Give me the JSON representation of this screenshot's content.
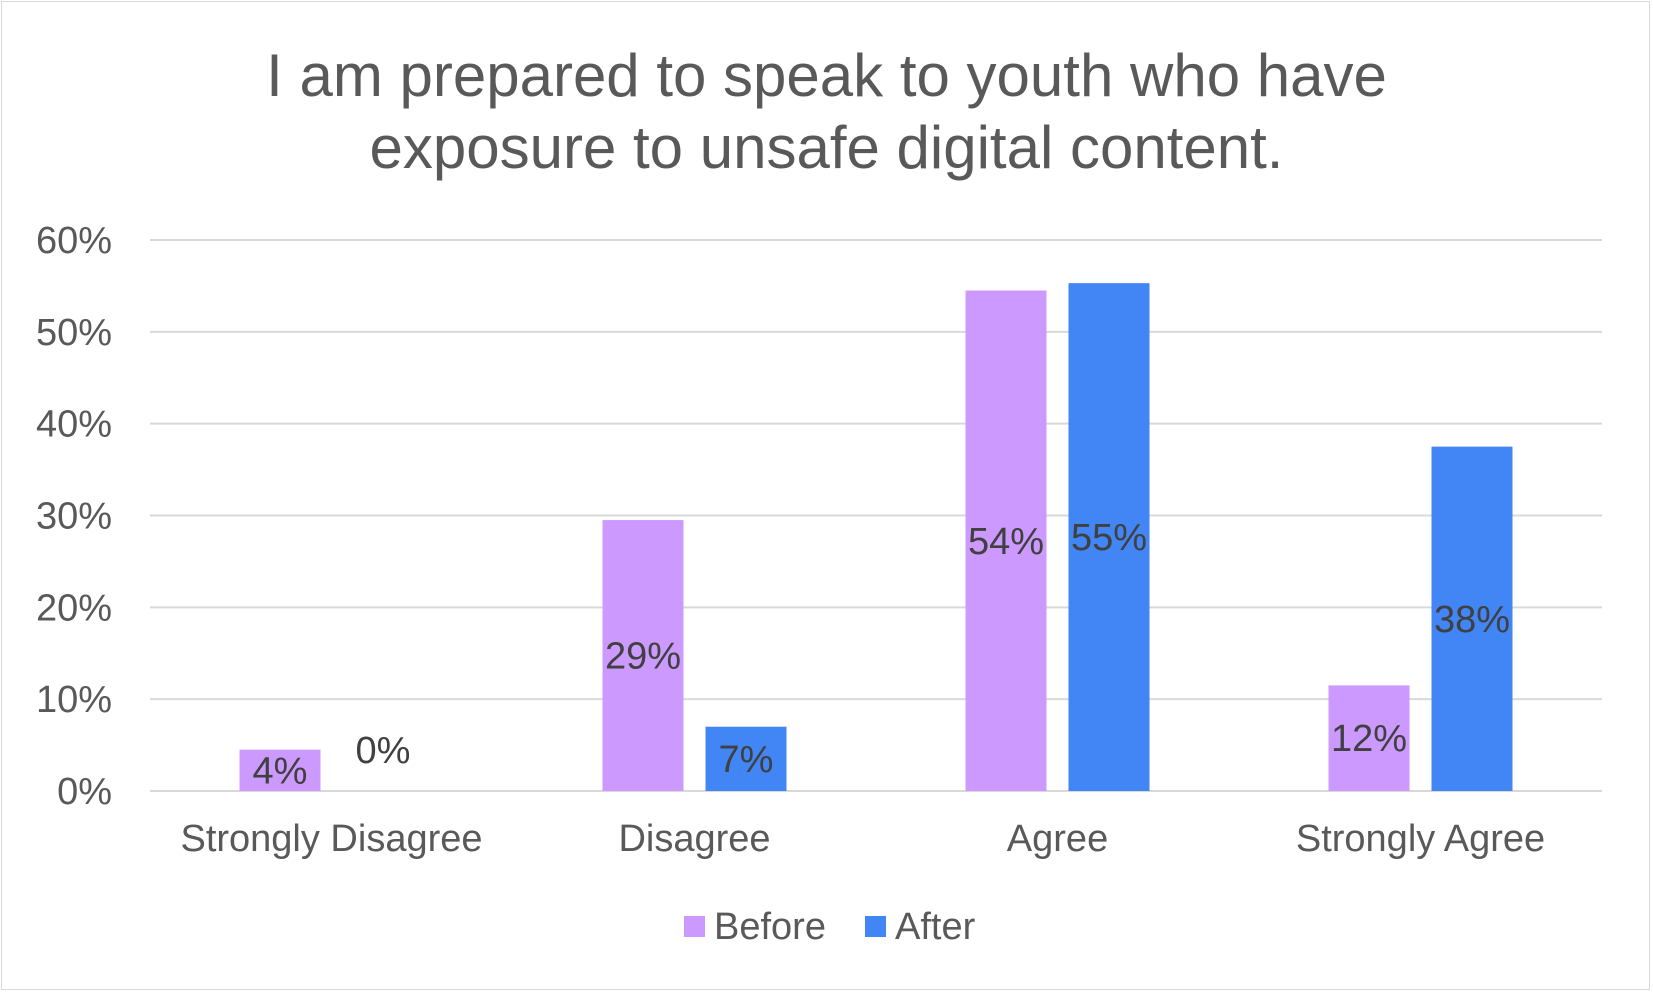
{
  "chart_data": {
    "type": "bar",
    "title_lines": [
      "I am prepared to speak to youth who have",
      "exposure to unsafe digital content."
    ],
    "categories": [
      "Strongly Disagree",
      "Disagree",
      "Agree",
      "Strongly Agree"
    ],
    "series": [
      {
        "name": "Before",
        "color": "#cc99ff",
        "values": [
          4.5,
          29.5,
          54.5,
          11.5
        ],
        "labels": [
          "4%",
          "29%",
          "54%",
          "12%"
        ]
      },
      {
        "name": "After",
        "color": "#4285f4",
        "values": [
          0,
          7,
          55.3,
          37.5
        ],
        "labels": [
          "0%",
          "7%",
          "55%",
          "38%"
        ]
      }
    ],
    "ylim": [
      0,
      60
    ],
    "yticks": [
      0,
      10,
      20,
      30,
      40,
      50,
      60
    ],
    "ytick_labels": [
      "0%",
      "10%",
      "20%",
      "30%",
      "40%",
      "50%",
      "60%"
    ],
    "grid": true,
    "legend": "bottom",
    "xlabel": "",
    "ylabel": ""
  }
}
